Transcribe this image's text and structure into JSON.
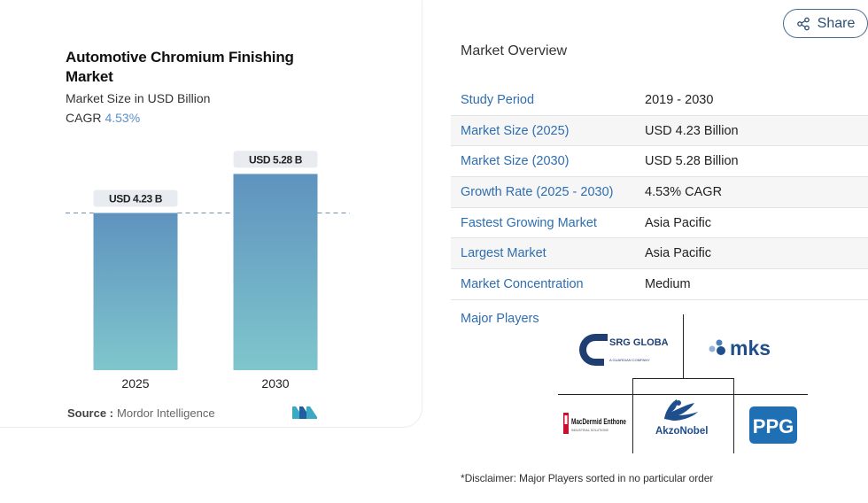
{
  "chart": {
    "title": "Automotive Chromium Finishing Market",
    "subtitle": "Market Size in USD Billion",
    "cagr_label": "CAGR",
    "cagr_value": "4.53%",
    "source_label": "Source :",
    "source_value": "Mordor Intelligence"
  },
  "chart_data": {
    "type": "bar",
    "categories": [
      "2025",
      "2030"
    ],
    "values": [
      4.23,
      5.28
    ],
    "data_labels": [
      "USD 4.23 B",
      "USD 5.28 B"
    ],
    "reference_line": 4.23,
    "ylim": [
      0,
      5.6
    ],
    "grid": false,
    "colors": {
      "bar_top": "#5f93bf",
      "bar_bottom": "#7fc6cc",
      "dashed_line": "#6e8fb3"
    }
  },
  "share": {
    "label": "Share",
    "icon": "share-icon"
  },
  "overview": {
    "title": "Market Overview",
    "rows": [
      {
        "key": "Study Period",
        "value": "2019 - 2030"
      },
      {
        "key": "Market Size (2025)",
        "value": "USD 4.23 Billion"
      },
      {
        "key": "Market Size (2030)",
        "value": "USD 5.28 Billion"
      },
      {
        "key": "Growth Rate (2025 - 2030)",
        "value": "4.53% CAGR"
      },
      {
        "key": "Fastest Growing Market",
        "value": "Asia Pacific"
      },
      {
        "key": "Largest Market",
        "value": "Asia Pacific"
      },
      {
        "key": "Market Concentration",
        "value": "Medium"
      }
    ],
    "major_players_label": "Major Players",
    "players": [
      {
        "name": "SRG GLOBAL",
        "sub": "A GUARDIAN COMPANY"
      },
      {
        "name": "mks"
      },
      {
        "name": "MacDermid Enthone",
        "sub": "INDUSTRIAL SOLUTIONS"
      },
      {
        "name": "AkzoNobel"
      },
      {
        "name": "PPG"
      }
    ],
    "disclaimer": "*Disclaimer: Major Players sorted in no particular order"
  },
  "colors": {
    "accent": "#2f6eb0",
    "cagr": "#5b8fc9",
    "ppg": "#1f6fb5",
    "akzo": "#1f4e8c"
  }
}
